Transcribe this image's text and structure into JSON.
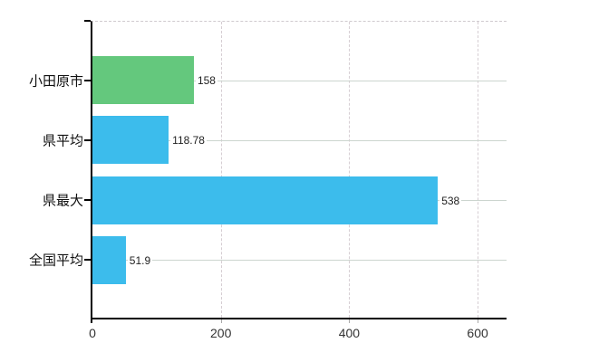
{
  "chart": {
    "background": "#ffffff",
    "axis_color": "#000000",
    "h_grid_color": "#ccd5cf",
    "v_grid_color": "#d6ced3",
    "top_border_color": "#cfc9ce",
    "value_label_color": "#222222",
    "tick_label_color": "#333333",
    "category_label_color": "#111111"
  },
  "chart_data": {
    "type": "bar",
    "orientation": "horizontal",
    "title": "",
    "xlabel": "",
    "ylabel": "",
    "categories": [
      "小田原市",
      "県平均",
      "県最大",
      "全国平均"
    ],
    "values": [
      158,
      118.78,
      538,
      51.9
    ],
    "value_labels": [
      "158",
      "118.78",
      "538",
      "51.9"
    ],
    "bar_colors": [
      "#64c87d",
      "#3cbcec",
      "#3cbcec",
      "#3cbcec"
    ],
    "x_tick_values": [
      0,
      200,
      400,
      600
    ],
    "x_tick_labels": [
      "0",
      "200",
      "400",
      "600"
    ],
    "xlim": [
      0,
      645
    ],
    "grid": true,
    "legend_position": "none"
  }
}
